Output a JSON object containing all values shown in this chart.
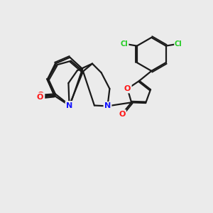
{
  "background_color": "#ebebeb",
  "bond_color": "#1a1a1a",
  "bond_width": 1.6,
  "atom_colors": {
    "N": "#1414ff",
    "O": "#ff1414",
    "Cl": "#22cc22",
    "C": "#1a1a1a"
  },
  "font_size_atom": 8.0,
  "font_size_cl": 7.0,
  "xlim": [
    0,
    10
  ],
  "ylim": [
    0,
    10
  ]
}
